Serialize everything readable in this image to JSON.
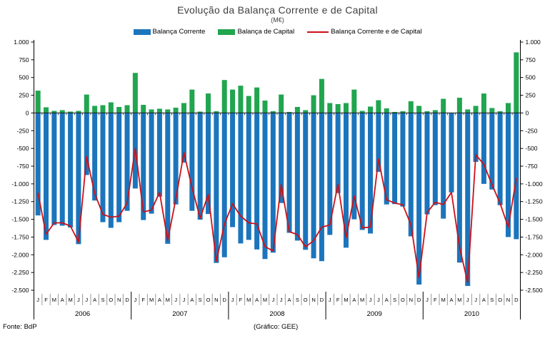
{
  "title": "Evolução da Balança Corrente e de Capital",
  "subtitle": "(M€)",
  "legend": {
    "items": [
      {
        "label": "Balança Corrente",
        "color": "#1B75BC",
        "type": "bar"
      },
      {
        "label": "Balança de Capital",
        "color": "#21A54F",
        "type": "bar"
      },
      {
        "label": "Balança Corrente e de Capital",
        "color": "#CC1118",
        "type": "line"
      }
    ]
  },
  "footer": {
    "source": "Fonte: BdP",
    "credit": "(Gráfico: GEE)"
  },
  "chart_data": {
    "type": "bar",
    "subtype": "bar-line-combo",
    "unit": "M€",
    "years": [
      "2006",
      "2007",
      "2008",
      "2009",
      "2010"
    ],
    "month_letters": [
      "J",
      "F",
      "M",
      "A",
      "M",
      "J",
      "J",
      "A",
      "S",
      "O",
      "N",
      "D"
    ],
    "y_axis": {
      "min": -2500,
      "max": 1000,
      "step": 250,
      "sides": [
        "left",
        "right"
      ],
      "tick_labels": [
        "1.000",
        "750",
        "500",
        "250",
        "0",
        "-250",
        "-500",
        "-750",
        "-1.000",
        "-1.250",
        "-1.500",
        "-1.750",
        "-2.000",
        "-2.250",
        "-2.500"
      ]
    },
    "grid": false,
    "legend_position": "top",
    "series": [
      {
        "name": "Balança Corrente",
        "type": "bar",
        "color": "#1B75BC",
        "values": [
          -1445,
          -1790,
          -1580,
          -1590,
          -1615,
          -1850,
          -875,
          -1235,
          -1540,
          -1620,
          -1540,
          -1380,
          -1065,
          -1510,
          -1420,
          -1180,
          -1845,
          -1290,
          -700,
          -1380,
          -1505,
          -1425,
          -2115,
          -2035,
          -1610,
          -1840,
          -1790,
          -1925,
          -2060,
          -1970,
          -1270,
          -1690,
          -1800,
          -1930,
          -2050,
          -2090,
          -1720,
          -1130,
          -1900,
          -1500,
          -1650,
          -1700,
          -830,
          -1290,
          -1285,
          -1320,
          -1740,
          -2420,
          -1430,
          -1300,
          -1490,
          -1120,
          -2110,
          -2440,
          -690,
          -1000,
          -1080,
          -1300,
          -1750,
          -1780
        ]
      },
      {
        "name": "Balança de Capital",
        "type": "bar",
        "color": "#21A54F",
        "values": [
          315,
          80,
          30,
          40,
          20,
          30,
          260,
          100,
          110,
          150,
          85,
          110,
          565,
          115,
          50,
          60,
          50,
          75,
          140,
          330,
          20,
          275,
          25,
          465,
          330,
          385,
          240,
          360,
          175,
          25,
          260,
          15,
          85,
          40,
          250,
          480,
          140,
          125,
          140,
          330,
          30,
          90,
          180,
          65,
          15,
          25,
          165,
          100,
          25,
          40,
          200,
          0,
          215,
          50,
          100,
          275,
          70,
          25,
          140,
          855
        ]
      },
      {
        "name": "Balança Corrente e de Capital",
        "type": "line",
        "color": "#CC1118",
        "values": [
          -1130,
          -1710,
          -1550,
          -1550,
          -1595,
          -1820,
          -615,
          -1135,
          -1430,
          -1470,
          -1455,
          -1270,
          -500,
          -1395,
          -1370,
          -1120,
          -1795,
          -1215,
          -560,
          -1050,
          -1485,
          -1150,
          -2090,
          -1570,
          -1280,
          -1455,
          -1550,
          -1565,
          -1885,
          -1945,
          -1010,
          -1675,
          -1715,
          -1890,
          -1800,
          -1610,
          -1580,
          -1005,
          -1760,
          -1170,
          -1620,
          -1610,
          -650,
          -1225,
          -1270,
          -1295,
          -1575,
          -2320,
          -1405,
          -1260,
          -1290,
          -1120,
          -1895,
          -2390,
          -590,
          -725,
          -1010,
          -1275,
          -1610,
          -925
        ]
      }
    ]
  }
}
